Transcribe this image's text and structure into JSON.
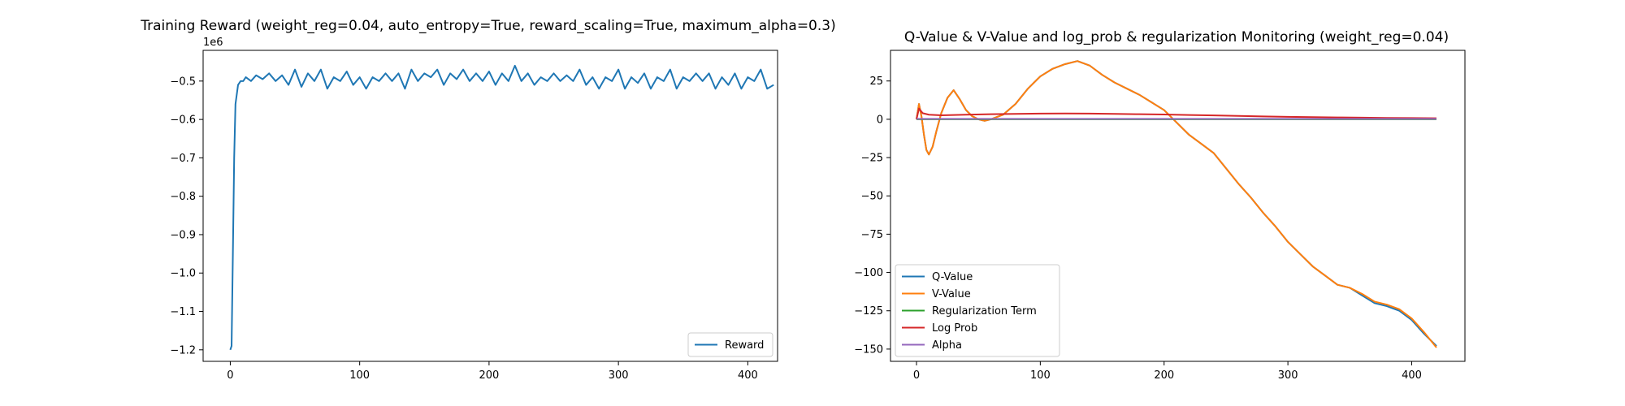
{
  "chart_data": [
    {
      "type": "line",
      "title": "Training Reward (weight_reg=0.04, auto_entropy=True, reward_scaling=True, maximum_alpha=0.3)",
      "xlabel": "",
      "ylabel": "",
      "offset_text": "1e6",
      "xlim": [
        -21,
        423
      ],
      "ylim": [
        -1.23,
        -0.42
      ],
      "x_ticks": [
        0,
        100,
        200,
        300,
        400
      ],
      "x_tick_labels": [
        "0",
        "100",
        "200",
        "300",
        "400"
      ],
      "y_ticks": [
        -1.2,
        -1.1,
        -1.0,
        -0.9,
        -0.8,
        -0.7,
        -0.6,
        -0.5
      ],
      "y_tick_labels": [
        "−1.2",
        "−1.1",
        "−1.0",
        "−0.9",
        "−0.8",
        "−0.7",
        "−0.6",
        "−0.5"
      ],
      "grid": false,
      "legend_position": "lower-right",
      "series": [
        {
          "name": "Reward",
          "color": "#1f77b4",
          "x": [
            0,
            1,
            2,
            3,
            4,
            6,
            8,
            10,
            12,
            16,
            20,
            25,
            30,
            35,
            40,
            45,
            50,
            55,
            60,
            65,
            70,
            75,
            80,
            85,
            90,
            95,
            100,
            105,
            110,
            115,
            120,
            125,
            130,
            135,
            140,
            145,
            150,
            155,
            160,
            165,
            170,
            175,
            180,
            185,
            190,
            195,
            200,
            205,
            210,
            215,
            220,
            225,
            230,
            235,
            240,
            245,
            250,
            255,
            260,
            265,
            270,
            275,
            280,
            285,
            290,
            295,
            300,
            305,
            310,
            315,
            320,
            325,
            330,
            335,
            340,
            345,
            350,
            355,
            360,
            365,
            370,
            375,
            380,
            385,
            390,
            395,
            400,
            405,
            410,
            415,
            420
          ],
          "y": [
            -1.2,
            -1.19,
            -0.95,
            -0.7,
            -0.56,
            -0.51,
            -0.5,
            -0.5,
            -0.49,
            -0.5,
            -0.485,
            -0.495,
            -0.48,
            -0.5,
            -0.485,
            -0.51,
            -0.47,
            -0.515,
            -0.48,
            -0.5,
            -0.47,
            -0.52,
            -0.49,
            -0.5,
            -0.475,
            -0.51,
            -0.49,
            -0.52,
            -0.49,
            -0.5,
            -0.48,
            -0.5,
            -0.48,
            -0.52,
            -0.47,
            -0.5,
            -0.48,
            -0.49,
            -0.47,
            -0.51,
            -0.48,
            -0.495,
            -0.47,
            -0.5,
            -0.48,
            -0.5,
            -0.475,
            -0.51,
            -0.48,
            -0.5,
            -0.46,
            -0.5,
            -0.48,
            -0.51,
            -0.49,
            -0.5,
            -0.48,
            -0.5,
            -0.485,
            -0.5,
            -0.47,
            -0.51,
            -0.49,
            -0.52,
            -0.49,
            -0.5,
            -0.47,
            -0.52,
            -0.49,
            -0.505,
            -0.48,
            -0.52,
            -0.49,
            -0.5,
            -0.47,
            -0.52,
            -0.49,
            -0.5,
            -0.48,
            -0.5,
            -0.48,
            -0.52,
            -0.49,
            -0.51,
            -0.48,
            -0.52,
            -0.49,
            -0.5,
            -0.47,
            -0.52,
            -0.51
          ]
        }
      ]
    },
    {
      "type": "line",
      "title": "Q-Value & V-Value and log_prob & regularization Monitoring (weight_reg=0.04)",
      "xlabel": "",
      "ylabel": "",
      "xlim": [
        -21,
        443
      ],
      "ylim": [
        -158,
        45
      ],
      "x_ticks": [
        0,
        100,
        200,
        300,
        400
      ],
      "x_tick_labels": [
        "0",
        "100",
        "200",
        "300",
        "400"
      ],
      "y_ticks": [
        -150,
        -125,
        -100,
        -75,
        -50,
        -25,
        0,
        25
      ],
      "y_tick_labels": [
        "−150",
        "−125",
        "−100",
        "−75",
        "−50",
        "−25",
        "0",
        "25"
      ],
      "grid": false,
      "legend_position": "lower-left",
      "series": [
        {
          "name": "Q-Value",
          "color": "#1f77b4",
          "x": [
            0,
            2,
            4,
            6,
            8,
            10,
            13,
            16,
            20,
            25,
            30,
            35,
            40,
            45,
            50,
            55,
            60,
            70,
            80,
            90,
            100,
            110,
            120,
            130,
            140,
            150,
            160,
            170,
            180,
            190,
            200,
            210,
            220,
            230,
            240,
            250,
            260,
            270,
            280,
            290,
            300,
            310,
            320,
            330,
            340,
            350,
            360,
            370,
            380,
            390,
            400,
            410,
            420
          ],
          "y": [
            0,
            10,
            2,
            -10,
            -20,
            -23,
            -18,
            -8,
            4,
            14,
            19,
            13,
            6,
            2,
            0,
            -1,
            0,
            3,
            10,
            20,
            28,
            33,
            36,
            38,
            35,
            29,
            24,
            20,
            16,
            11,
            6,
            -2,
            -10,
            -16,
            -22,
            -32,
            -42,
            -51,
            -61,
            -70,
            -80,
            -88,
            -96,
            -102,
            -108,
            -110,
            -115,
            -120,
            -122,
            -125,
            -131,
            -140,
            -148
          ]
        },
        {
          "name": "V-Value",
          "color": "#ff7f0e",
          "x": [
            0,
            2,
            4,
            6,
            8,
            10,
            13,
            16,
            20,
            25,
            30,
            35,
            40,
            45,
            50,
            55,
            60,
            70,
            80,
            90,
            100,
            110,
            120,
            130,
            140,
            150,
            160,
            170,
            180,
            190,
            200,
            210,
            220,
            230,
            240,
            250,
            260,
            270,
            280,
            290,
            300,
            310,
            320,
            330,
            340,
            350,
            360,
            370,
            380,
            390,
            400,
            410,
            420
          ],
          "y": [
            0,
            10,
            2,
            -10,
            -20,
            -23,
            -18,
            -8,
            4,
            14,
            19,
            13,
            6,
            2,
            0,
            -1,
            0,
            3,
            10,
            20,
            28,
            33,
            36,
            38,
            35,
            29,
            24,
            20,
            16,
            11,
            6,
            -2,
            -10,
            -16,
            -22,
            -32,
            -42,
            -51,
            -61,
            -70,
            -80,
            -88,
            -96,
            -102,
            -108,
            -110,
            -114,
            -119,
            -121,
            -124,
            -130,
            -139,
            -149
          ]
        },
        {
          "name": "Regularization Term",
          "color": "#2ca02c",
          "x": [
            0,
            420
          ],
          "y": [
            0,
            0
          ]
        },
        {
          "name": "Log Prob",
          "color": "#d62728",
          "x": [
            0,
            2,
            5,
            10,
            20,
            40,
            60,
            80,
            100,
            120,
            140,
            160,
            180,
            200,
            220,
            240,
            260,
            280,
            300,
            320,
            340,
            360,
            380,
            400,
            420
          ],
          "y": [
            0,
            7,
            4,
            3,
            2.6,
            3,
            3.3,
            3.5,
            3.7,
            3.8,
            3.7,
            3.5,
            3.3,
            3.1,
            2.8,
            2.5,
            2.2,
            1.9,
            1.6,
            1.4,
            1.2,
            1.1,
            0.9,
            0.8,
            0.7
          ]
        },
        {
          "name": "Alpha",
          "color": "#9467bd",
          "x": [
            0,
            420
          ],
          "y": [
            0.3,
            0.3
          ]
        }
      ]
    }
  ]
}
